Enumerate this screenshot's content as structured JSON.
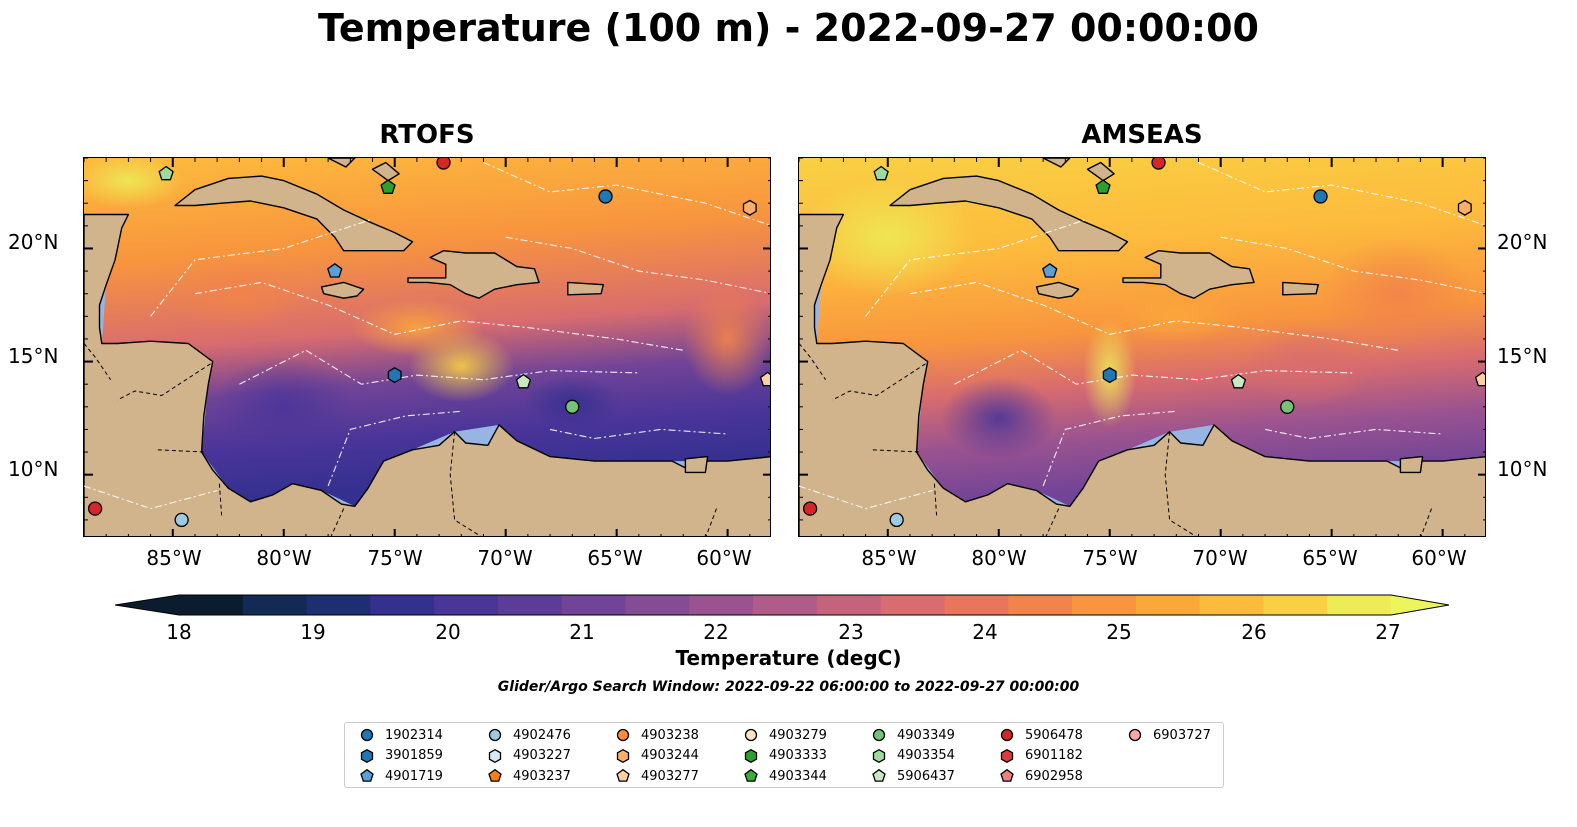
{
  "title": "Temperature (100 m) - 2022-09-27 00:00:00",
  "panels": [
    {
      "title": "RTOFS",
      "variant": "rtofs"
    },
    {
      "title": "AMSEAS",
      "variant": "amseas"
    }
  ],
  "lon_ticks": [
    "85°W",
    "80°W",
    "75°W",
    "70°W",
    "65°W",
    "60°W"
  ],
  "lat_ticks": [
    "20°N",
    "15°N",
    "10°N"
  ],
  "colorbar": {
    "label": "Temperature (degC)",
    "ticks": [
      "18",
      "19",
      "20",
      "21",
      "22",
      "23",
      "24",
      "25",
      "26",
      "27"
    ],
    "range": [
      18,
      27
    ],
    "colors": [
      "#0b1c2e",
      "#122a54",
      "#1e2e73",
      "#33308f",
      "#4a3599",
      "#5c3c99",
      "#714497",
      "#844c93",
      "#9a5390",
      "#b15c88",
      "#c5637d",
      "#d86c6e",
      "#e8755c",
      "#f2834a",
      "#f8953e",
      "#fba73a",
      "#fdbb3d",
      "#f9d043",
      "#edeb56"
    ],
    "extend_low": "#0b1c2e",
    "extend_high": "#edf55c"
  },
  "search_window": "Glider/Argo Search Window: 2022-09-22 06:00:00 to 2022-09-27 00:00:00",
  "colors": {
    "ocean": "#96b5e3",
    "land": "#d1b48c",
    "frame": "#000000"
  },
  "legend": [
    {
      "id": "1902314",
      "marker": "circle",
      "color": "#1f77b4"
    },
    {
      "id": "3901859",
      "marker": "hexagon",
      "color": "#1f77b4"
    },
    {
      "id": "4901719",
      "marker": "pentagon",
      "color": "#5aa0d8"
    },
    {
      "id": "4902476",
      "marker": "circle",
      "color": "#9ecae1"
    },
    {
      "id": "4903227",
      "marker": "hexagon",
      "color": "#d6eaf6"
    },
    {
      "id": "4903237",
      "marker": "pentagon",
      "color": "#ff7f0e"
    },
    {
      "id": "4903238",
      "marker": "circle",
      "color": "#fd8d3c"
    },
    {
      "id": "4903244",
      "marker": "hexagon",
      "color": "#fdae6b"
    },
    {
      "id": "4903277",
      "marker": "pentagon",
      "color": "#fdd0a2"
    },
    {
      "id": "4903279",
      "marker": "circle",
      "color": "#fde4c8"
    },
    {
      "id": "4903333",
      "marker": "hexagon",
      "color": "#2ca02c"
    },
    {
      "id": "4903344",
      "marker": "pentagon",
      "color": "#3aad3a"
    },
    {
      "id": "4903349",
      "marker": "circle",
      "color": "#74c476"
    },
    {
      "id": "4903354",
      "marker": "hexagon",
      "color": "#a1d99b"
    },
    {
      "id": "5906437",
      "marker": "pentagon",
      "color": "#c7e9c0"
    },
    {
      "id": "5906478",
      "marker": "circle",
      "color": "#d62728"
    },
    {
      "id": "6901182",
      "marker": "hexagon",
      "color": "#de3a3a"
    },
    {
      "id": "6902958",
      "marker": "pentagon",
      "color": "#f08080"
    },
    {
      "id": "6903727",
      "marker": "circle",
      "color": "#f7a8a8"
    }
  ],
  "markers": [
    {
      "lon": -85.3,
      "lat": 23.3,
      "marker": "pentagon",
      "color": "#a1d99b"
    },
    {
      "lon": -72.8,
      "lat": 23.8,
      "marker": "circle",
      "color": "#d62728"
    },
    {
      "lon": -75.3,
      "lat": 22.7,
      "marker": "pentagon",
      "color": "#2ca02c"
    },
    {
      "lon": -65.5,
      "lat": 22.3,
      "marker": "circle",
      "color": "#1f77b4"
    },
    {
      "lon": -59.0,
      "lat": 21.8,
      "marker": "hexagon",
      "color": "#fdae6b"
    },
    {
      "lon": -77.7,
      "lat": 19.0,
      "marker": "pentagon",
      "color": "#5aa0d8"
    },
    {
      "lon": -75.0,
      "lat": 14.4,
      "marker": "hexagon",
      "color": "#1f77b4"
    },
    {
      "lon": -69.2,
      "lat": 14.1,
      "marker": "pentagon",
      "color": "#c7e9c0"
    },
    {
      "lon": -67.0,
      "lat": 13.0,
      "marker": "circle",
      "color": "#74c476"
    },
    {
      "lon": -58.2,
      "lat": 14.2,
      "marker": "pentagon",
      "color": "#fdd0a2"
    },
    {
      "lon": -88.5,
      "lat": 8.5,
      "marker": "circle",
      "color": "#d62728"
    },
    {
      "lon": -84.6,
      "lat": 8.0,
      "marker": "circle",
      "color": "#9ecae1"
    }
  ]
}
